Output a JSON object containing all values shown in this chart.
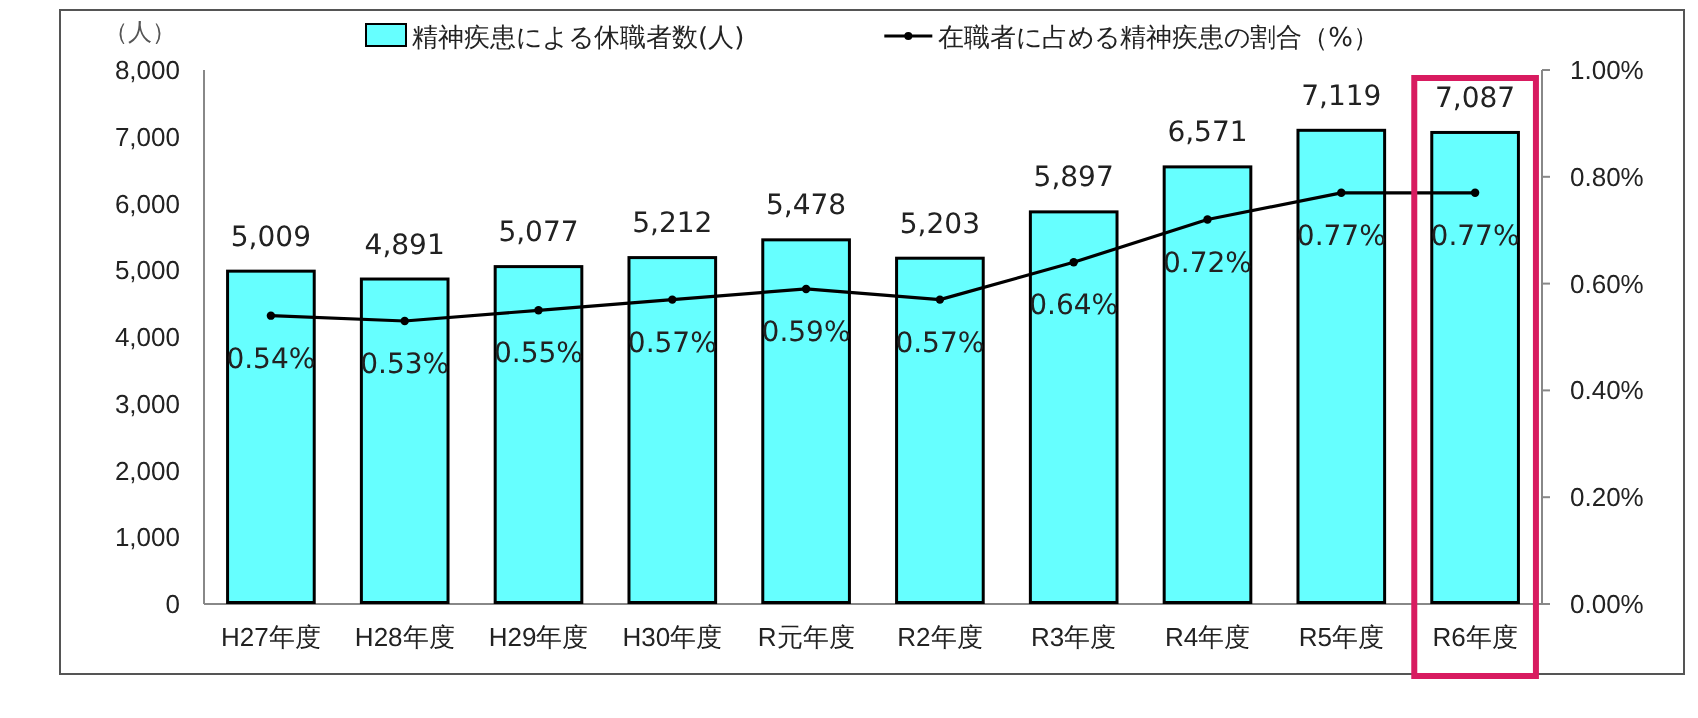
{
  "chart_data": {
    "type": "bar",
    "ylabel": "（人）",
    "categories": [
      "H27年度",
      "H28年度",
      "H29年度",
      "H30年度",
      "R元年度",
      "R2年度",
      "R3年度",
      "R4年度",
      "R5年度",
      "R6年度"
    ],
    "series": [
      {
        "name": "精神疾患による休職者数(人)",
        "color": "#66ffff",
        "values": [
          5009,
          4891,
          5077,
          5212,
          5478,
          5203,
          5897,
          6571,
          7119,
          7087
        ],
        "value_labels": [
          "5,009",
          "4,891",
          "5,077",
          "5,212",
          "5,478",
          "5,203",
          "5,897",
          "6,571",
          "7,119",
          "7,087"
        ]
      },
      {
        "name": "在職者に占める精神疾患の割合（%）",
        "type": "line",
        "axis": "y2",
        "color": "#000000",
        "marker": "circle",
        "values": [
          0.54,
          0.53,
          0.55,
          0.57,
          0.59,
          0.57,
          0.64,
          0.72,
          0.77,
          0.77
        ],
        "value_labels": [
          "0.54%",
          "0.53%",
          "0.55%",
          "0.57%",
          "0.59%",
          "0.57%",
          "0.64%",
          "0.72%",
          "0.77%",
          "0.77%"
        ]
      }
    ],
    "ylim": [
      0,
      8000
    ],
    "yticks": [
      {
        "value": 0,
        "label": "0"
      },
      {
        "value": 1000,
        "label": "1,000"
      },
      {
        "value": 2000,
        "label": "2,000"
      },
      {
        "value": 3000,
        "label": "3,000"
      },
      {
        "value": 4000,
        "label": "4,000"
      },
      {
        "value": 5000,
        "label": "5,000"
      },
      {
        "value": 6000,
        "label": "6,000"
      },
      {
        "value": 7000,
        "label": "7,000"
      },
      {
        "value": 8000,
        "label": "8,000"
      }
    ],
    "y2lim": [
      0,
      1
    ],
    "y2ticks": [
      {
        "value": 0,
        "label": "0.00%"
      },
      {
        "value": 0.2,
        "label": "0.20%"
      },
      {
        "value": 0.4,
        "label": "0.40%"
      },
      {
        "value": 0.6,
        "label": "0.60%"
      },
      {
        "value": 0.8,
        "label": "0.80%"
      },
      {
        "value": 1,
        "label": "1.00%"
      }
    ],
    "grid": false,
    "legend": "top"
  }
}
